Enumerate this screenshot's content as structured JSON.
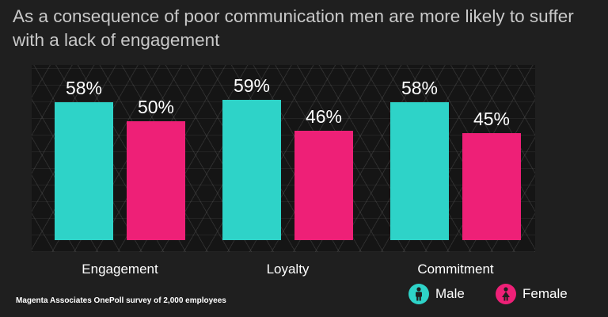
{
  "title": "As a consequence of poor communication men are more likely to suffer with a lack of engagement",
  "source": "Magenta Associates OnePoll survey of 2,000 employees",
  "legend": {
    "male": "Male",
    "female": "Female"
  },
  "colors": {
    "male": "#2ed3c8",
    "female": "#ee2077",
    "background": "#1f1f1f",
    "title": "#c9c9c9"
  },
  "icons": {
    "male": "male-person-icon",
    "female": "female-person-icon"
  },
  "chart_data": {
    "type": "bar",
    "categories": [
      "Engagement",
      "Loyalty",
      "Commitment"
    ],
    "series": [
      {
        "name": "Male",
        "values": [
          58,
          59,
          58
        ],
        "labels": [
          "58%",
          "59%",
          "58%"
        ]
      },
      {
        "name": "Female",
        "values": [
          50,
          46,
          45
        ],
        "labels": [
          "50%",
          "46%",
          "45%"
        ]
      }
    ],
    "grid": false,
    "legend_position": "bottom-right"
  }
}
